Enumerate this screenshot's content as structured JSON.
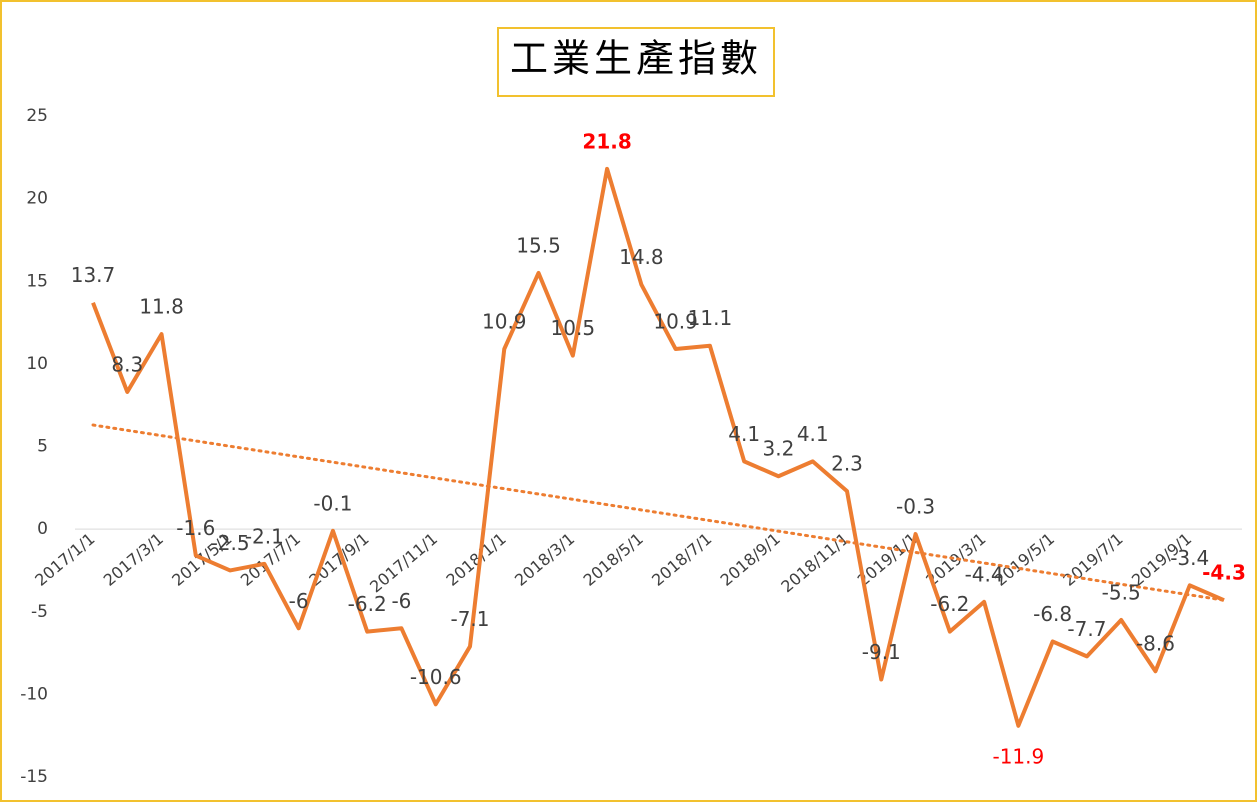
{
  "chart_data": {
    "type": "line",
    "title": "工業生產指數",
    "categories": [
      "2017/1/1",
      null,
      "2017/3/1",
      null,
      "2017/5/1",
      null,
      "2017/7/1",
      null,
      "2017/9/1",
      null,
      "2017/11/1",
      null,
      "2018/1/1",
      null,
      "2018/3/1",
      null,
      "2018/5/1",
      null,
      "2018/7/1",
      null,
      "2018/9/1",
      null,
      "2018/11/1",
      null,
      "2019/1/1",
      null,
      "2019/3/1",
      null,
      "2019/5/1",
      null,
      "2019/7/1",
      null,
      "2019/9/1",
      null
    ],
    "series": [
      {
        "name": "工業生產指數",
        "color": "#ed7d31",
        "values": [
          13.7,
          8.3,
          11.8,
          -1.6,
          -2.5,
          -2.1,
          -6,
          -0.1,
          -6.2,
          -6,
          -10.6,
          -7.1,
          10.9,
          15.5,
          10.5,
          21.8,
          14.8,
          10.9,
          11.1,
          4.1,
          3.2,
          4.1,
          2.3,
          -9.1,
          -0.3,
          -6.2,
          -4.4,
          -11.9,
          -6.8,
          -7.7,
          -5.5,
          -8.6,
          -3.4,
          -4.3
        ]
      }
    ],
    "trendline": {
      "color": "#ed7d31",
      "values": [
        6.3,
        -4.3
      ]
    },
    "highlights": [
      {
        "index": 15,
        "color": "#ff0000",
        "bold": true
      },
      {
        "index": 27,
        "color": "#ff0000",
        "bold": false
      },
      {
        "index": 33,
        "color": "#ff0000",
        "bold": true
      }
    ],
    "ylim": [
      -15,
      25
    ],
    "yticks": [
      -15,
      -10,
      -5,
      0,
      5,
      10,
      15,
      20,
      25
    ],
    "grid": false
  }
}
